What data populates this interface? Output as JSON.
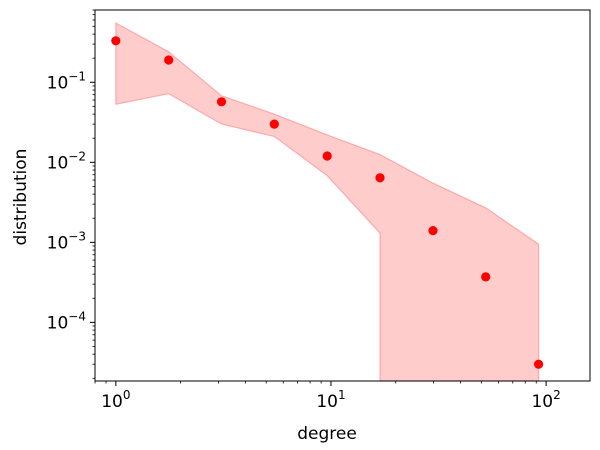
{
  "chart_data": {
    "type": "scatter",
    "title": "",
    "xlabel": "degree",
    "ylabel": "distribution",
    "xscale": "log",
    "yscale": "log",
    "xlim": [
      0.8,
      160
    ],
    "ylim": [
      1.85e-05,
      0.8
    ],
    "grid": false,
    "legend": "none",
    "x_ticks": [
      {
        "value": 1,
        "base": "10",
        "exp": "0"
      },
      {
        "value": 10,
        "base": "10",
        "exp": "1"
      },
      {
        "value": 100,
        "base": "10",
        "exp": "2"
      }
    ],
    "y_ticks": [
      {
        "value": 0.1,
        "base": "10",
        "exp": "−1"
      },
      {
        "value": 0.01,
        "base": "10",
        "exp": "−2"
      },
      {
        "value": 0.001,
        "base": "10",
        "exp": "−3"
      },
      {
        "value": 0.0001,
        "base": "10",
        "exp": "−4"
      }
    ],
    "points": {
      "x": [
        1.0,
        1.76,
        3.1,
        5.45,
        9.6,
        16.9,
        29.8,
        52.4,
        92.3
      ],
      "y": [
        0.33,
        0.19,
        0.057,
        0.03,
        0.012,
        0.0064,
        0.0014,
        0.00037,
        3e-05
      ],
      "color": "#ff0000"
    },
    "band": {
      "x": [
        1.0,
        1.76,
        3.1,
        5.45,
        9.6,
        16.9,
        29.8,
        52.4,
        92.3
      ],
      "upper": [
        0.55,
        0.24,
        0.068,
        0.04,
        0.022,
        0.0125,
        0.0055,
        0.0027,
        0.00095
      ],
      "lower": [
        0.053,
        0.072,
        0.03,
        0.021,
        0.0068,
        0.0013,
        null,
        null,
        null
      ],
      "color": "#ff0000",
      "alpha": 0.2
    }
  }
}
